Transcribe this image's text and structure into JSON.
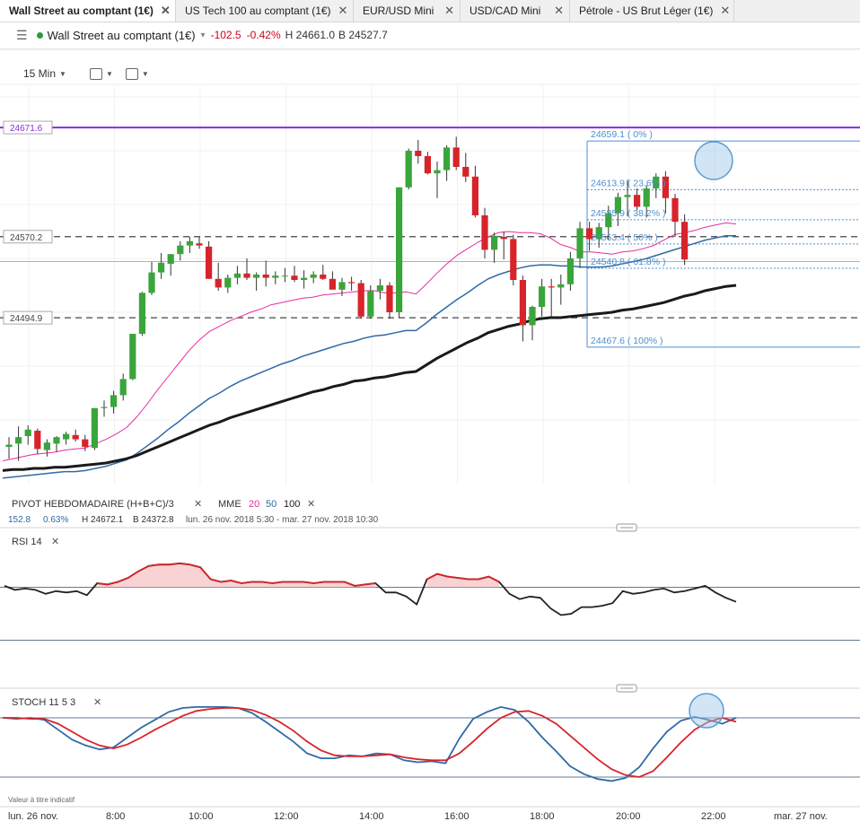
{
  "tabs": [
    {
      "label": "Wall Street au comptant (1€)",
      "active": true
    },
    {
      "label": "US Tech 100 au comptant (1€)",
      "active": false
    },
    {
      "label": "EUR/USD Mini",
      "active": false
    },
    {
      "label": "USD/CAD Mini",
      "active": false
    },
    {
      "label": "Pétrole - US Brut Léger (1€)",
      "active": false
    }
  ],
  "tab_close_glyph": "✕",
  "header": {
    "menu_icon": "hamburger-icon",
    "instrument": "Wall Street au comptant (1€)",
    "change": "-102.5",
    "change_pct": "-0.42%",
    "high": "H 24661.0",
    "low": "B 24527.7"
  },
  "toolbar": {
    "interval": "15 Min",
    "chart_type_icon": "candles-icon",
    "template_icon": "layout-icon"
  },
  "colors": {
    "up": "#3aa53a",
    "down": "#d8232a",
    "ema20": "#e82c9f",
    "ema50": "#2f6aa6",
    "ema100": "#1a1a1a",
    "pivot": "#8a2be2",
    "fib": "#4d8fcf",
    "rsi": "#222222",
    "rsi_hot": "#d8232a",
    "stoch_k": "#2f6aa6",
    "stoch_d": "#d8232a"
  },
  "price_panel": {
    "pivot_label": "PIVOT  HEBDOMADAIRE  (H+B+C)/3",
    "pivot_close": "✕",
    "mme_label": "MME",
    "mme_periods": [
      "20",
      "50",
      "100"
    ],
    "mme_close": "✕",
    "info_change": "152.8",
    "info_pct": "0.63%",
    "info_high": "H 24672.1",
    "info_low": "B 24372.8",
    "info_range": "lun. 26 nov. 2018 5:30 - mar. 27 nov. 2018 10:30"
  },
  "rsi_panel": {
    "label": "RSI  14",
    "close": "✕"
  },
  "stoch_panel": {
    "label": "STOCH  11  5  3",
    "close": "✕"
  },
  "footnote": "Valeur à titre indicatif",
  "chart_data": [
    {
      "type": "candlestick",
      "title": "Wall Street au comptant (1€)",
      "interval": "15 Min",
      "ylim": [
        24340,
        24710
      ],
      "y_tick_labels": [
        "24671.6",
        "24570.2",
        "24494.9"
      ],
      "horizontal_levels": [
        {
          "label": "24671.6",
          "value": 24671.6,
          "style": "pivot"
        },
        {
          "label": "24570.2",
          "value": 24570.2,
          "style": "dashed"
        },
        {
          "label": "24494.9",
          "value": 24494.9,
          "style": "dashed"
        }
      ],
      "fibonacci": [
        {
          "label": "24659.1 ( 0% )",
          "value": 24659.1
        },
        {
          "label": "24613.9 ( 23.6% )",
          "value": 24613.9
        },
        {
          "label": "24585.9 ( 38.2% )",
          "value": 24585.9
        },
        {
          "label": "24563.4 ( 50% )",
          "value": 24563.4
        },
        {
          "label": "24540.8 ( 61.8% )",
          "value": 24540.8
        },
        {
          "label": "24467.6 ( 100% )",
          "value": 24467.6
        }
      ],
      "x_tick_labels": [
        "lun. 26 nov.",
        "8:00",
        "10:00",
        "12:00",
        "14:00",
        "16:00",
        "18:00",
        "20:00",
        "22:00",
        "mar. 27 nov."
      ],
      "candles_ohlc": [
        [
          24375,
          24384,
          24364,
          24377
        ],
        [
          24378,
          24394,
          24362,
          24384
        ],
        [
          24385,
          24395,
          24377,
          24391
        ],
        [
          24390,
          24392,
          24368,
          24373
        ],
        [
          24372,
          24382,
          24366,
          24379
        ],
        [
          24378,
          24385,
          24370,
          24384
        ],
        [
          24382,
          24389,
          24377,
          24387
        ],
        [
          24386,
          24391,
          24380,
          24382
        ],
        [
          24382,
          24386,
          24371,
          24375
        ],
        [
          24374,
          24411,
          24372,
          24411
        ],
        [
          24411,
          24418,
          24403,
          24412
        ],
        [
          24412,
          24427,
          24406,
          24423
        ],
        [
          24423,
          24443,
          24418,
          24438
        ],
        [
          24438,
          24480,
          24437,
          24480
        ],
        [
          24480,
          24519,
          24478,
          24518
        ],
        [
          24518,
          24547,
          24516,
          24537
        ],
        [
          24537,
          24555,
          24531,
          24546
        ],
        [
          24545,
          24554,
          24534,
          24554
        ],
        [
          24554,
          24566,
          24548,
          24562
        ],
        [
          24562,
          24570,
          24555,
          24566
        ],
        [
          24564,
          24570,
          24559,
          24562
        ],
        [
          24561,
          24566,
          24531,
          24531
        ],
        [
          24531,
          24546,
          24520,
          24523
        ],
        [
          24523,
          24535,
          24518,
          24532
        ],
        [
          24532,
          24543,
          24526,
          24536
        ],
        [
          24536,
          24550,
          24530,
          24532
        ],
        [
          24532,
          24537,
          24520,
          24535
        ],
        [
          24535,
          24548,
          24524,
          24532
        ],
        [
          24532,
          24538,
          24526,
          24534
        ],
        [
          24534,
          24541,
          24528,
          24534
        ],
        [
          24534,
          24543,
          24528,
          24530
        ],
        [
          24530,
          24539,
          24522,
          24532
        ],
        [
          24532,
          24538,
          24527,
          24535
        ],
        [
          24535,
          24544,
          24530,
          24531
        ],
        [
          24531,
          24538,
          24521,
          24521
        ],
        [
          24521,
          24532,
          24515,
          24528
        ],
        [
          24528,
          24533,
          24520,
          24527
        ],
        [
          24527,
          24530,
          24494,
          24496
        ],
        [
          24496,
          24525,
          24494,
          24520
        ],
        [
          24520,
          24531,
          24512,
          24525
        ],
        [
          24525,
          24528,
          24494,
          24500
        ],
        [
          24500,
          24616,
          24495,
          24616
        ],
        [
          24616,
          24652,
          24614,
          24650
        ],
        [
          24650,
          24660,
          24638,
          24645
        ],
        [
          24645,
          24649,
          24628,
          24629
        ],
        [
          24629,
          24640,
          24606,
          24632
        ],
        [
          24632,
          24655,
          24622,
          24653
        ],
        [
          24653,
          24663,
          24632,
          24635
        ],
        [
          24635,
          24648,
          24621,
          24626
        ],
        [
          24626,
          24636,
          24588,
          24590
        ],
        [
          24590,
          24597,
          24550,
          24558
        ],
        [
          24558,
          24574,
          24546,
          24571
        ],
        [
          24570,
          24575,
          24549,
          24568
        ],
        [
          24568,
          24572,
          24525,
          24530
        ],
        [
          24530,
          24534,
          24473,
          24488
        ],
        [
          24488,
          24506,
          24474,
          24505
        ],
        [
          24505,
          24531,
          24496,
          24524
        ],
        [
          24524,
          24531,
          24496,
          24523
        ],
        [
          24523,
          24535,
          24507,
          24526
        ],
        [
          24526,
          24556,
          24520,
          24550
        ],
        [
          24550,
          24584,
          24541,
          24578
        ],
        [
          24578,
          24584,
          24557,
          24568
        ],
        [
          24568,
          24583,
          24560,
          24579
        ],
        [
          24579,
          24599,
          24567,
          24592
        ],
        [
          24592,
          24611,
          24580,
          24607
        ],
        [
          24607,
          24623,
          24589,
          24609
        ],
        [
          24609,
          24615,
          24595,
          24598
        ],
        [
          24598,
          24618,
          24588,
          24615
        ],
        [
          24615,
          24629,
          24606,
          24626
        ],
        [
          24626,
          24631,
          24592,
          24606
        ],
        [
          24606,
          24610,
          24570,
          24584
        ],
        [
          24584,
          24591,
          24544,
          24549
        ]
      ],
      "series": [
        {
          "name": "20",
          "values": [
            24362,
            24364,
            24366,
            24368,
            24369,
            24370,
            24372,
            24373,
            24374,
            24378,
            24382,
            24387,
            24393,
            24403,
            24415,
            24428,
            24440,
            24452,
            24464,
            24474,
            24482,
            24487,
            24492,
            24496,
            24500,
            24503,
            24507,
            24509,
            24511,
            24513,
            24514,
            24516,
            24517,
            24518,
            24519,
            24520,
            24520,
            24518,
            24518,
            24519,
            24517,
            24526,
            24536,
            24545,
            24553,
            24559,
            24565,
            24570,
            24574,
            24575,
            24574,
            24574,
            24573,
            24569,
            24563,
            24560,
            24556,
            24556,
            24555,
            24554,
            24556,
            24557,
            24559,
            24562,
            24567,
            24572,
            24574,
            24576,
            24579,
            24581,
            24583,
            24582
          ]
        },
        {
          "name": "50",
          "values": [
            24346,
            24347,
            24348,
            24349,
            24350,
            24351,
            24352,
            24352,
            24353,
            24355,
            24357,
            24360,
            24363,
            24369,
            24376,
            24383,
            24391,
            24398,
            24406,
            24413,
            24420,
            24425,
            24431,
            24436,
            24440,
            24444,
            24448,
            24452,
            24455,
            24459,
            24462,
            24465,
            24468,
            24471,
            24473,
            24476,
            24478,
            24479,
            24481,
            24483,
            24483,
            24490,
            24498,
            24505,
            24512,
            24518,
            24525,
            24531,
            24535,
            24538,
            24541,
            24543,
            24544,
            24544,
            24543,
            24543,
            24542,
            24542,
            24542,
            24543,
            24545,
            24547,
            24549,
            24552,
            24555,
            24558,
            24561,
            24564,
            24567,
            24569,
            24571,
            24571
          ]
        },
        {
          "name": "100",
          "values": [
            24353,
            24354,
            24354,
            24355,
            24355,
            24356,
            24356,
            24357,
            24358,
            24359,
            24360,
            24362,
            24364,
            24367,
            24371,
            24375,
            24379,
            24383,
            24387,
            24391,
            24395,
            24398,
            24402,
            24405,
            24408,
            24411,
            24414,
            24417,
            24420,
            24423,
            24426,
            24428,
            24431,
            24433,
            24436,
            24437,
            24439,
            24440,
            24442,
            24444,
            24445,
            24451,
            24457,
            24462,
            24467,
            24472,
            24476,
            24481,
            24484,
            24487,
            24489,
            24492,
            24494,
            24495,
            24495,
            24496,
            24497,
            24498,
            24499,
            24500,
            24502,
            24503,
            24505,
            24507,
            24509,
            24512,
            24515,
            24517,
            24520,
            24522,
            24524,
            24525
          ]
        }
      ]
    },
    {
      "type": "line",
      "title": "RSI 14",
      "ylim": [
        0,
        100
      ],
      "levels": [
        70,
        30
      ],
      "series": [
        {
          "name": "RSI 14",
          "values": [
            71,
            68,
            69,
            68,
            65,
            67,
            66,
            67,
            64,
            73,
            72,
            74,
            77,
            82,
            86,
            87,
            87,
            88,
            87,
            85,
            76,
            74,
            75,
            73,
            74,
            74,
            73,
            74,
            74,
            74,
            73,
            74,
            74,
            74,
            71,
            72,
            73,
            66,
            66,
            63,
            57,
            76,
            80,
            78,
            77,
            76,
            76,
            78,
            74,
            65,
            61,
            63,
            62,
            54,
            49,
            50,
            55,
            55,
            56,
            58,
            67,
            65,
            66,
            68,
            69,
            66,
            67,
            69,
            71,
            66,
            62,
            59
          ]
        }
      ]
    },
    {
      "type": "line",
      "title": "STOCH 11 5 3",
      "ylim": [
        0,
        100
      ],
      "levels": [
        80,
        20
      ],
      "series": [
        {
          "name": "11",
          "values": [
            80,
            79,
            80,
            78,
            68,
            58,
            52,
            48,
            50,
            60,
            70,
            78,
            86,
            90,
            91,
            91,
            91,
            90,
            85,
            76,
            66,
            56,
            44,
            39,
            39,
            42,
            41,
            44,
            43,
            37,
            35,
            36,
            34,
            59,
            79,
            86,
            91,
            88,
            76,
            60,
            46,
            31,
            23,
            18,
            16,
            19,
            30,
            49,
            66,
            77,
            81,
            78,
            74,
            80
          ]
        },
        {
          "name": "5",
          "values": [
            80,
            80,
            79,
            79,
            74,
            66,
            58,
            52,
            49,
            53,
            60,
            68,
            75,
            82,
            87,
            89,
            90,
            90,
            88,
            83,
            76,
            67,
            56,
            47,
            42,
            41,
            41,
            42,
            43,
            40,
            38,
            37,
            37,
            44,
            56,
            69,
            80,
            86,
            87,
            82,
            74,
            62,
            50,
            38,
            28,
            22,
            20,
            26,
            40,
            55,
            68,
            76,
            80,
            76
          ]
        }
      ]
    }
  ]
}
